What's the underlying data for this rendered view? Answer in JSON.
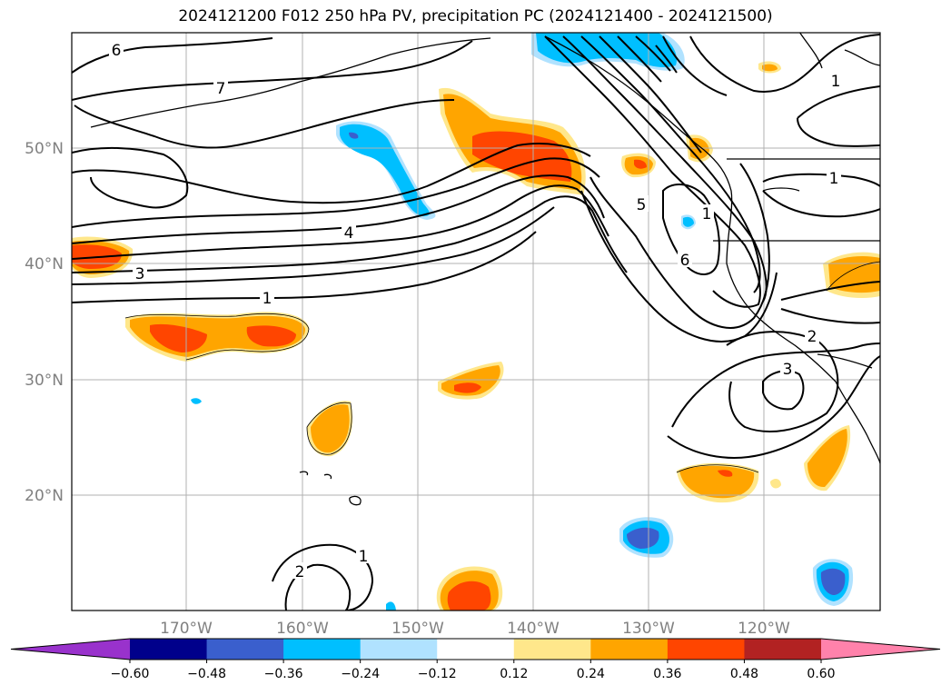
{
  "title": "2024121200 F012 250 hPa PV, precipitation PC (2024121400 - 2024121500)",
  "map": {
    "lat_labels": [
      "50°N",
      "40°N",
      "30°N",
      "20°N"
    ],
    "lon_labels": [
      "170°W",
      "160°W",
      "150°W",
      "140°W",
      "130°W",
      "120°W"
    ],
    "contour_labels": [
      "6",
      "7",
      "4",
      "3",
      "1",
      "1",
      "1",
      "1",
      "5",
      "6",
      "2",
      "3",
      "2",
      "1"
    ]
  },
  "colorbar": {
    "ticks": [
      "−0.60",
      "−0.48",
      "−0.36",
      "−0.24",
      "−0.12",
      "0.12",
      "0.24",
      "0.36",
      "0.48",
      "0.60"
    ],
    "colors": [
      "#9932cc",
      "#00008b",
      "#3a5fcd",
      "#00bfff",
      "#b0e2ff",
      "#ffffff",
      "#ffe78b",
      "#ffa500",
      "#ff4500",
      "#b22222",
      "#ff82ab"
    ]
  }
}
